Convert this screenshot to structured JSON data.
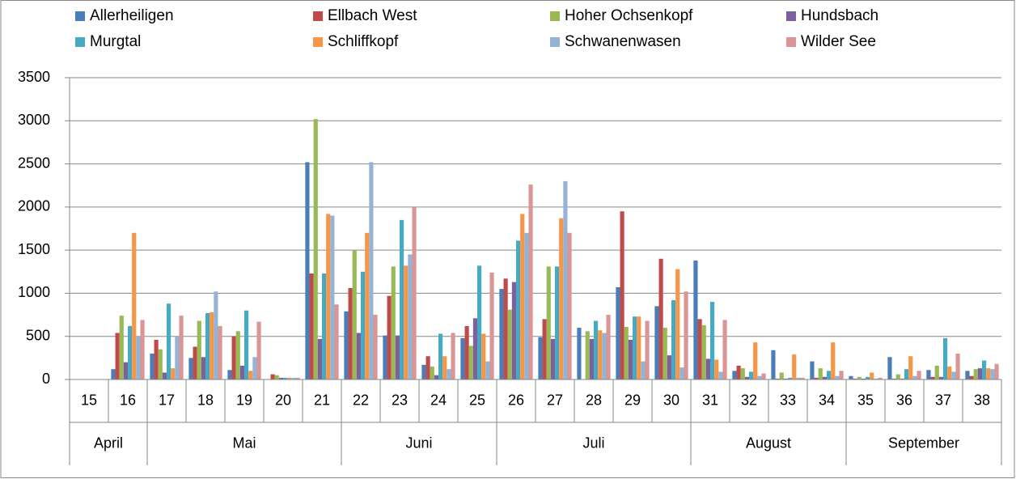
{
  "chart_data": {
    "type": "bar",
    "categories": [
      "15",
      "16",
      "17",
      "18",
      "19",
      "20",
      "21",
      "22",
      "23",
      "24",
      "25",
      "26",
      "27",
      "28",
      "29",
      "30",
      "31",
      "32",
      "33",
      "34",
      "35",
      "36",
      "37",
      "38"
    ],
    "x_groups": [
      {
        "label": "April",
        "count": 2
      },
      {
        "label": "Mai",
        "count": 5
      },
      {
        "label": "Juni",
        "count": 4
      },
      {
        "label": "Juli",
        "count": 5
      },
      {
        "label": "August",
        "count": 4
      },
      {
        "label": "September",
        "count": 4
      }
    ],
    "series": [
      {
        "name": "Allerheiligen",
        "color": "#4a7ebb",
        "values": [
          0,
          120,
          300,
          250,
          110,
          0,
          2520,
          790,
          510,
          170,
          480,
          1050,
          490,
          600,
          1070,
          850,
          1380,
          100,
          340,
          210,
          40,
          260,
          110,
          100
        ]
      },
      {
        "name": "Ellbach West",
        "color": "#be4b48",
        "values": [
          0,
          540,
          460,
          380,
          500,
          60,
          1230,
          1060,
          970,
          270,
          620,
          1170,
          700,
          0,
          1950,
          1400,
          700,
          160,
          10,
          20,
          10,
          10,
          30,
          40
        ]
      },
      {
        "name": "Hoher Ochsenkopf",
        "color": "#98b954",
        "values": [
          0,
          740,
          350,
          680,
          560,
          50,
          3020,
          1500,
          1310,
          150,
          390,
          810,
          1310,
          560,
          610,
          600,
          630,
          130,
          80,
          130,
          30,
          60,
          160,
          120
        ]
      },
      {
        "name": "Hundsbach",
        "color": "#7d60a0",
        "values": [
          0,
          200,
          80,
          260,
          160,
          20,
          470,
          540,
          510,
          50,
          710,
          1130,
          470,
          470,
          460,
          280,
          240,
          30,
          10,
          30,
          10,
          10,
          30,
          130
        ]
      },
      {
        "name": "Murgtal",
        "color": "#46aac5",
        "values": [
          0,
          620,
          880,
          770,
          800,
          20,
          1230,
          1250,
          1850,
          530,
          1320,
          1610,
          1310,
          680,
          730,
          920,
          900,
          90,
          20,
          100,
          30,
          120,
          480,
          220
        ]
      },
      {
        "name": "Schliffkopf",
        "color": "#f79646",
        "values": [
          0,
          1700,
          130,
          780,
          100,
          20,
          1920,
          1700,
          1320,
          270,
          530,
          1920,
          1870,
          570,
          730,
          1280,
          230,
          430,
          290,
          430,
          80,
          270,
          150,
          130
        ]
      },
      {
        "name": "Schwanenwasen",
        "color": "#95b3d7",
        "values": [
          0,
          500,
          500,
          1020,
          260,
          20,
          1900,
          2520,
          1450,
          120,
          210,
          1700,
          2300,
          540,
          210,
          140,
          90,
          40,
          20,
          40,
          10,
          40,
          90,
          120
        ]
      },
      {
        "name": "Wilder See",
        "color": "#d99694",
        "values": [
          0,
          690,
          740,
          620,
          670,
          20,
          870,
          750,
          2000,
          540,
          1240,
          2260,
          1700,
          750,
          680,
          1020,
          690,
          70,
          20,
          100,
          20,
          100,
          300,
          180
        ]
      }
    ],
    "ylim": [
      0,
      3500
    ],
    "yticks": [
      0,
      500,
      1000,
      1500,
      2000,
      2500,
      3000,
      3500
    ],
    "grid": true,
    "legend": "top"
  }
}
